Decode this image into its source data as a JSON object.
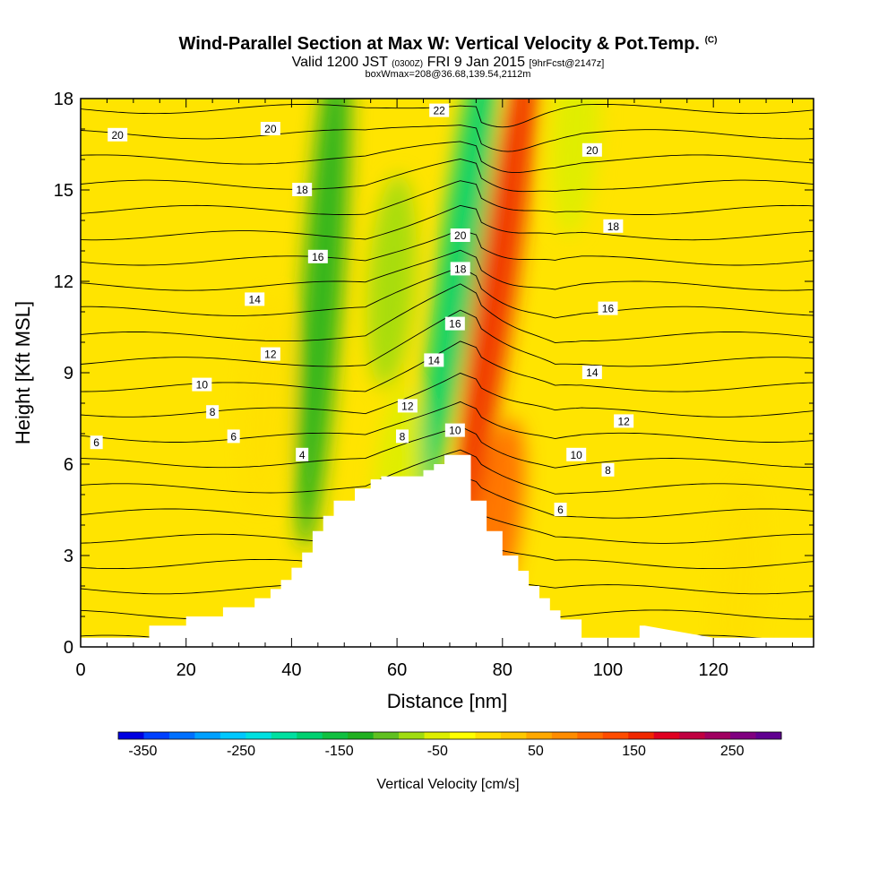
{
  "chart_data": {
    "type": "heatmap",
    "title": "Wind-Parallel Section at Max W: Vertical Velocity & Pot.Temp.",
    "title_mark": "(C)",
    "subtitle_main": "Valid 1200 JST",
    "subtitle_utc": "(0300Z)",
    "subtitle_date": "FRI 9 Jan 2015",
    "subtitle_fcst": "[9hrFcst@2147z]",
    "subtitle2": "boxWmax=208@36.68,139.54,2112m",
    "xlabel": "Distance [nm]",
    "ylabel": "Height [Kft MSL]",
    "xlim": [
      0,
      139
    ],
    "ylim": [
      0,
      18
    ],
    "x_ticks": [
      "0",
      "20",
      "40",
      "60",
      "80",
      "100",
      "120"
    ],
    "y_ticks": [
      "0",
      "3",
      "6",
      "9",
      "12",
      "15",
      "18"
    ],
    "colorbar": {
      "label": "Vertical Velocity [cm/s]",
      "tick_labels": [
        "-350",
        "-250",
        "-150",
        "-50",
        "50",
        "150",
        "250"
      ],
      "colors": [
        "#0000e0",
        "#0040ff",
        "#0070ff",
        "#00a0ff",
        "#00c8ff",
        "#00e0e0",
        "#00e0a0",
        "#00d070",
        "#10c040",
        "#20b020",
        "#60c020",
        "#a0dc10",
        "#ddee00",
        "#ffff00",
        "#ffe000",
        "#ffc800",
        "#ffa800",
        "#ff8c00",
        "#ff6c00",
        "#ff4c00",
        "#f02800",
        "#e00020",
        "#c00040",
        "#a00060",
        "#800080",
        "#600090"
      ]
    },
    "terrain": {
      "x": [
        0,
        13,
        13,
        20,
        20,
        27,
        27,
        33,
        33,
        36,
        36,
        38,
        38,
        40,
        40,
        42,
        42,
        44,
        44,
        46,
        46,
        48,
        48,
        52,
        52,
        55,
        55,
        57,
        57,
        59,
        59,
        65,
        65,
        67,
        67,
        69,
        69,
        74,
        74,
        77,
        77,
        80,
        80,
        83,
        83,
        85,
        85,
        87,
        87,
        89,
        89,
        91,
        91,
        95,
        95,
        100,
        100,
        106,
        106,
        107,
        107,
        120,
        120,
        139
      ],
      "height_kft": [
        0.3,
        0.3,
        0.7,
        0.7,
        1.0,
        1.0,
        1.3,
        1.3,
        1.6,
        1.6,
        1.9,
        1.9,
        2.2,
        2.2,
        2.6,
        2.6,
        3.1,
        3.1,
        3.8,
        3.8,
        4.3,
        4.3,
        4.8,
        4.8,
        5.2,
        5.2,
        5.5,
        5.5,
        5.6,
        5.6,
        5.6,
        5.6,
        5.8,
        5.8,
        6.0,
        6.0,
        6.3,
        6.3,
        4.8,
        4.8,
        3.8,
        3.8,
        3.0,
        3.0,
        2.5,
        2.5,
        2.0,
        2.0,
        1.6,
        1.6,
        1.2,
        1.2,
        0.9,
        0.9,
        0.3,
        0.3,
        0.3,
        0.3,
        0.7,
        0.7,
        0.7,
        0.3,
        0.3,
        0.3
      ]
    },
    "theta_contour_levels": [
      1,
      2,
      3,
      4,
      5,
      6,
      7,
      8,
      9,
      10,
      11,
      12,
      13,
      14,
      15,
      16,
      17,
      18,
      19,
      20,
      21,
      22
    ],
    "theta_contour_labels": [
      {
        "text": "20",
        "x": 7,
        "y": 16.8
      },
      {
        "text": "20",
        "x": 36,
        "y": 17.0
      },
      {
        "text": "22",
        "x": 68,
        "y": 17.6
      },
      {
        "text": "20",
        "x": 97,
        "y": 16.3
      },
      {
        "text": "18",
        "x": 42,
        "y": 15.0
      },
      {
        "text": "18",
        "x": 101,
        "y": 13.8
      },
      {
        "text": "20",
        "x": 72,
        "y": 13.5
      },
      {
        "text": "18",
        "x": 72,
        "y": 12.4
      },
      {
        "text": "16",
        "x": 45,
        "y": 12.8
      },
      {
        "text": "16",
        "x": 100,
        "y": 11.1
      },
      {
        "text": "16",
        "x": 71,
        "y": 10.6
      },
      {
        "text": "14",
        "x": 33,
        "y": 11.4
      },
      {
        "text": "14",
        "x": 67,
        "y": 9.4
      },
      {
        "text": "14",
        "x": 97,
        "y": 9.0
      },
      {
        "text": "12",
        "x": 36,
        "y": 9.6
      },
      {
        "text": "12",
        "x": 62,
        "y": 7.9
      },
      {
        "text": "12",
        "x": 103,
        "y": 7.4
      },
      {
        "text": "10",
        "x": 23,
        "y": 8.6
      },
      {
        "text": "10",
        "x": 71,
        "y": 7.1
      },
      {
        "text": "10",
        "x": 94,
        "y": 6.3
      },
      {
        "text": "8",
        "x": 25,
        "y": 7.7
      },
      {
        "text": "8",
        "x": 61,
        "y": 6.9
      },
      {
        "text": "8",
        "x": 100,
        "y": 5.8
      },
      {
        "text": "6",
        "x": 3,
        "y": 6.7
      },
      {
        "text": "6",
        "x": 29,
        "y": 6.9
      },
      {
        "text": "6",
        "x": 91,
        "y": 4.5
      },
      {
        "text": "4",
        "x": 42,
        "y": 6.3
      }
    ],
    "w_features_cms": [
      {
        "x": 46,
        "y": 12,
        "w": -120
      },
      {
        "x": 59,
        "y": 12,
        "w": -70
      },
      {
        "x": 72,
        "y": 13,
        "w": -170
      },
      {
        "x": 79,
        "y": 12,
        "w": 160
      },
      {
        "x": 60,
        "y": 5,
        "w": -40
      },
      {
        "x": 79,
        "y": 4,
        "w": 90
      },
      {
        "x": 94,
        "y": 17,
        "w": -60
      },
      {
        "x": 35,
        "y": 8,
        "w": 20
      },
      {
        "x": 125,
        "y": 2,
        "w": -10
      }
    ]
  }
}
